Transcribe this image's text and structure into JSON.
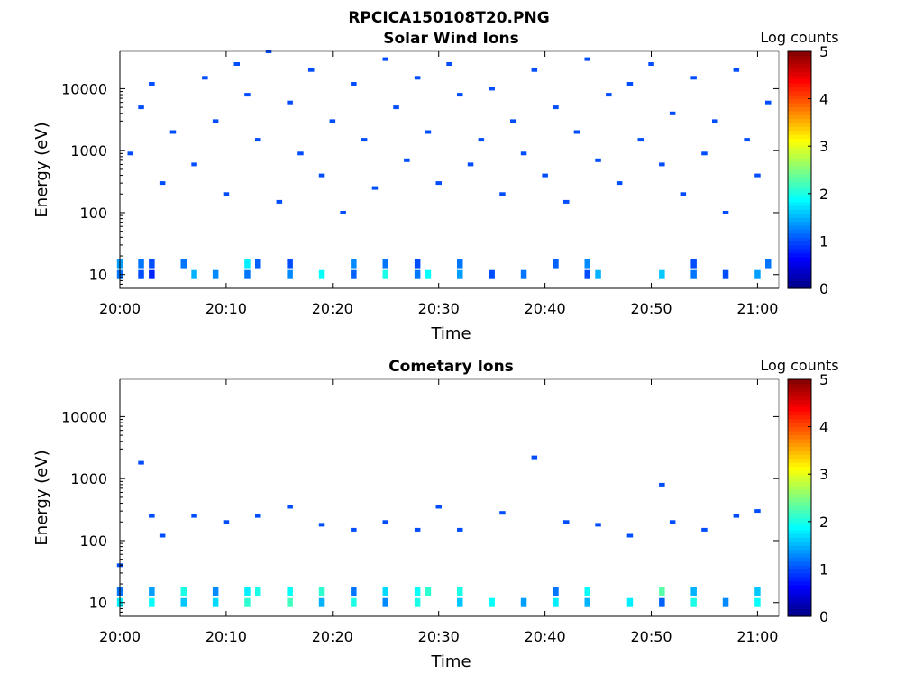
{
  "figure_title": "RPCICA150108T20.PNG",
  "colorbar": {
    "label": "Log counts",
    "min": 0,
    "max": 5,
    "ticks": [
      "0",
      "1",
      "2",
      "3",
      "4",
      "5"
    ],
    "colormap": "jet"
  },
  "chart_data": [
    {
      "type": "heatmap",
      "title": "Solar Wind Ions",
      "xlabel": "Time",
      "ylabel": "Energy (eV)",
      "xlim": [
        "20:00",
        "21:02"
      ],
      "ylim": [
        6,
        40000
      ],
      "yscale": "log",
      "xticks": [
        "20:00",
        "20:10",
        "20:20",
        "20:30",
        "20:40",
        "20:50",
        "21:00"
      ],
      "yticks": [
        "10",
        "100",
        "1000",
        "10000"
      ],
      "grid": false,
      "cells": [
        {
          "t": "20:00",
          "e": 10,
          "v": 1.2
        },
        {
          "t": "20:00",
          "e": 15,
          "v": 1.4
        },
        {
          "t": "20:02",
          "e": 10,
          "v": 1.0
        },
        {
          "t": "20:02",
          "e": 15,
          "v": 1.2
        },
        {
          "t": "20:03",
          "e": 10,
          "v": 0.8
        },
        {
          "t": "20:03",
          "e": 15,
          "v": 1.0
        },
        {
          "t": "20:06",
          "e": 15,
          "v": 1.2
        },
        {
          "t": "20:07",
          "e": 10,
          "v": 1.5
        },
        {
          "t": "20:09",
          "e": 10,
          "v": 1.3
        },
        {
          "t": "20:12",
          "e": 10,
          "v": 1.2
        },
        {
          "t": "20:12",
          "e": 15,
          "v": 1.8
        },
        {
          "t": "20:13",
          "e": 15,
          "v": 1.1
        },
        {
          "t": "20:16",
          "e": 10,
          "v": 1.3
        },
        {
          "t": "20:16",
          "e": 15,
          "v": 1.0
        },
        {
          "t": "20:19",
          "e": 10,
          "v": 1.9
        },
        {
          "t": "20:22",
          "e": 10,
          "v": 1.1
        },
        {
          "t": "20:22",
          "e": 15,
          "v": 1.3
        },
        {
          "t": "20:25",
          "e": 10,
          "v": 2.0
        },
        {
          "t": "20:25",
          "e": 15,
          "v": 1.2
        },
        {
          "t": "20:28",
          "e": 10,
          "v": 1.2
        },
        {
          "t": "20:28",
          "e": 15,
          "v": 1.0
        },
        {
          "t": "20:29",
          "e": 10,
          "v": 1.9
        },
        {
          "t": "20:32",
          "e": 10,
          "v": 1.4
        },
        {
          "t": "20:32",
          "e": 15,
          "v": 1.2
        },
        {
          "t": "20:35",
          "e": 10,
          "v": 1.0
        },
        {
          "t": "20:38",
          "e": 10,
          "v": 1.2
        },
        {
          "t": "20:41",
          "e": 15,
          "v": 1.1
        },
        {
          "t": "20:44",
          "e": 10,
          "v": 1.0
        },
        {
          "t": "20:44",
          "e": 15,
          "v": 1.3
        },
        {
          "t": "20:45",
          "e": 10,
          "v": 1.5
        },
        {
          "t": "20:51",
          "e": 10,
          "v": 1.6
        },
        {
          "t": "20:54",
          "e": 10,
          "v": 1.2
        },
        {
          "t": "20:54",
          "e": 15,
          "v": 1.0
        },
        {
          "t": "20:57",
          "e": 10,
          "v": 1.0
        },
        {
          "t": "21:00",
          "e": 10,
          "v": 1.4
        },
        {
          "t": "21:01",
          "e": 15,
          "v": 1.2
        },
        {
          "t": "20:01",
          "e": 900,
          "v": 1.0
        },
        {
          "t": "20:02",
          "e": 5000,
          "v": 1.0
        },
        {
          "t": "20:03",
          "e": 12000,
          "v": 1.0
        },
        {
          "t": "20:04",
          "e": 300,
          "v": 1.0
        },
        {
          "t": "20:05",
          "e": 2000,
          "v": 1.0
        },
        {
          "t": "20:07",
          "e": 600,
          "v": 1.0
        },
        {
          "t": "20:08",
          "e": 15000,
          "v": 1.0
        },
        {
          "t": "20:09",
          "e": 3000,
          "v": 1.0
        },
        {
          "t": "20:10",
          "e": 200,
          "v": 1.0
        },
        {
          "t": "20:11",
          "e": 25000,
          "v": 1.0
        },
        {
          "t": "20:12",
          "e": 8000,
          "v": 1.0
        },
        {
          "t": "20:13",
          "e": 1500,
          "v": 1.0
        },
        {
          "t": "20:14",
          "e": 40000,
          "v": 1.0
        },
        {
          "t": "20:15",
          "e": 150,
          "v": 1.0
        },
        {
          "t": "20:16",
          "e": 6000,
          "v": 1.0
        },
        {
          "t": "20:17",
          "e": 900,
          "v": 1.0
        },
        {
          "t": "20:18",
          "e": 20000,
          "v": 1.0
        },
        {
          "t": "20:19",
          "e": 400,
          "v": 1.0
        },
        {
          "t": "20:20",
          "e": 3000,
          "v": 1.0
        },
        {
          "t": "20:21",
          "e": 100,
          "v": 1.0
        },
        {
          "t": "20:22",
          "e": 12000,
          "v": 1.0
        },
        {
          "t": "20:23",
          "e": 1500,
          "v": 1.0
        },
        {
          "t": "20:24",
          "e": 250,
          "v": 1.0
        },
        {
          "t": "20:25",
          "e": 30000,
          "v": 1.0
        },
        {
          "t": "20:26",
          "e": 5000,
          "v": 1.0
        },
        {
          "t": "20:27",
          "e": 700,
          "v": 1.0
        },
        {
          "t": "20:28",
          "e": 15000,
          "v": 1.0
        },
        {
          "t": "20:29",
          "e": 2000,
          "v": 1.0
        },
        {
          "t": "20:30",
          "e": 300,
          "v": 1.0
        },
        {
          "t": "20:31",
          "e": 25000,
          "v": 1.0
        },
        {
          "t": "20:32",
          "e": 8000,
          "v": 1.0
        },
        {
          "t": "20:33",
          "e": 600,
          "v": 1.0
        },
        {
          "t": "20:34",
          "e": 1500,
          "v": 1.0
        },
        {
          "t": "20:35",
          "e": 10000,
          "v": 1.0
        },
        {
          "t": "20:36",
          "e": 200,
          "v": 1.0
        },
        {
          "t": "20:37",
          "e": 3000,
          "v": 1.0
        },
        {
          "t": "20:38",
          "e": 900,
          "v": 1.0
        },
        {
          "t": "20:39",
          "e": 20000,
          "v": 1.0
        },
        {
          "t": "20:40",
          "e": 400,
          "v": 1.0
        },
        {
          "t": "20:41",
          "e": 5000,
          "v": 1.0
        },
        {
          "t": "20:42",
          "e": 150,
          "v": 1.0
        },
        {
          "t": "20:43",
          "e": 2000,
          "v": 1.0
        },
        {
          "t": "20:44",
          "e": 30000,
          "v": 1.0
        },
        {
          "t": "20:45",
          "e": 700,
          "v": 1.0
        },
        {
          "t": "20:46",
          "e": 8000,
          "v": 1.0
        },
        {
          "t": "20:47",
          "e": 300,
          "v": 1.0
        },
        {
          "t": "20:48",
          "e": 12000,
          "v": 1.0
        },
        {
          "t": "20:49",
          "e": 1500,
          "v": 1.0
        },
        {
          "t": "20:50",
          "e": 25000,
          "v": 1.0
        },
        {
          "t": "20:51",
          "e": 600,
          "v": 1.0
        },
        {
          "t": "20:52",
          "e": 4000,
          "v": 1.0
        },
        {
          "t": "20:53",
          "e": 200,
          "v": 1.0
        },
        {
          "t": "20:54",
          "e": 15000,
          "v": 1.0
        },
        {
          "t": "20:55",
          "e": 900,
          "v": 1.0
        },
        {
          "t": "20:56",
          "e": 3000,
          "v": 1.0
        },
        {
          "t": "20:57",
          "e": 100,
          "v": 1.0
        },
        {
          "t": "20:58",
          "e": 20000,
          "v": 1.0
        },
        {
          "t": "20:59",
          "e": 1500,
          "v": 1.0
        },
        {
          "t": "21:00",
          "e": 400,
          "v": 1.0
        },
        {
          "t": "21:01",
          "e": 6000,
          "v": 1.0
        }
      ]
    },
    {
      "type": "heatmap",
      "title": "Cometary Ions",
      "xlabel": "Time",
      "ylabel": "Energy (eV)",
      "xlim": [
        "20:00",
        "21:02"
      ],
      "ylim": [
        6,
        40000
      ],
      "yscale": "log",
      "xticks": [
        "20:00",
        "20:10",
        "20:20",
        "20:30",
        "20:40",
        "20:50",
        "21:00"
      ],
      "yticks": [
        "10",
        "100",
        "1000",
        "10000"
      ],
      "grid": false,
      "cells": [
        {
          "t": "20:00",
          "e": 10,
          "v": 1.8
        },
        {
          "t": "20:00",
          "e": 15,
          "v": 1.2
        },
        {
          "t": "20:03",
          "e": 10,
          "v": 1.9
        },
        {
          "t": "20:03",
          "e": 15,
          "v": 1.4
        },
        {
          "t": "20:06",
          "e": 10,
          "v": 1.6
        },
        {
          "t": "20:06",
          "e": 15,
          "v": 2.0
        },
        {
          "t": "20:09",
          "e": 10,
          "v": 1.7
        },
        {
          "t": "20:09",
          "e": 15,
          "v": 1.3
        },
        {
          "t": "20:12",
          "e": 10,
          "v": 2.1
        },
        {
          "t": "20:12",
          "e": 15,
          "v": 1.8
        },
        {
          "t": "20:13",
          "e": 15,
          "v": 2.0
        },
        {
          "t": "20:16",
          "e": 10,
          "v": 2.2
        },
        {
          "t": "20:16",
          "e": 15,
          "v": 1.9
        },
        {
          "t": "20:19",
          "e": 10,
          "v": 1.5
        },
        {
          "t": "20:19",
          "e": 15,
          "v": 2.1
        },
        {
          "t": "20:22",
          "e": 10,
          "v": 2.0
        },
        {
          "t": "20:22",
          "e": 15,
          "v": 1.2
        },
        {
          "t": "20:25",
          "e": 10,
          "v": 1.3
        },
        {
          "t": "20:25",
          "e": 15,
          "v": 1.7
        },
        {
          "t": "20:28",
          "e": 10,
          "v": 2.0
        },
        {
          "t": "20:28",
          "e": 15,
          "v": 1.9
        },
        {
          "t": "20:29",
          "e": 15,
          "v": 2.1
        },
        {
          "t": "20:32",
          "e": 10,
          "v": 1.6
        },
        {
          "t": "20:32",
          "e": 15,
          "v": 2.0
        },
        {
          "t": "20:35",
          "e": 10,
          "v": 1.9
        },
        {
          "t": "20:38",
          "e": 10,
          "v": 1.4
        },
        {
          "t": "20:41",
          "e": 10,
          "v": 1.8
        },
        {
          "t": "20:41",
          "e": 15,
          "v": 1.2
        },
        {
          "t": "20:44",
          "e": 10,
          "v": 1.5
        },
        {
          "t": "20:44",
          "e": 15,
          "v": 1.9
        },
        {
          "t": "20:48",
          "e": 10,
          "v": 1.8
        },
        {
          "t": "20:51",
          "e": 10,
          "v": 1.1
        },
        {
          "t": "20:51",
          "e": 15,
          "v": 2.3
        },
        {
          "t": "20:54",
          "e": 10,
          "v": 2.0
        },
        {
          "t": "20:54",
          "e": 15,
          "v": 1.5
        },
        {
          "t": "20:57",
          "e": 10,
          "v": 1.3
        },
        {
          "t": "21:00",
          "e": 10,
          "v": 1.9
        },
        {
          "t": "21:00",
          "e": 15,
          "v": 1.6
        },
        {
          "t": "20:00",
          "e": 40,
          "v": 1.0
        },
        {
          "t": "20:02",
          "e": 1800,
          "v": 1.0
        },
        {
          "t": "20:03",
          "e": 250,
          "v": 1.0
        },
        {
          "t": "20:04",
          "e": 120,
          "v": 1.0
        },
        {
          "t": "20:07",
          "e": 250,
          "v": 1.0
        },
        {
          "t": "20:10",
          "e": 200,
          "v": 1.0
        },
        {
          "t": "20:13",
          "e": 250,
          "v": 1.0
        },
        {
          "t": "20:16",
          "e": 350,
          "v": 1.0
        },
        {
          "t": "20:19",
          "e": 180,
          "v": 1.0
        },
        {
          "t": "20:22",
          "e": 150,
          "v": 1.0
        },
        {
          "t": "20:25",
          "e": 200,
          "v": 1.0
        },
        {
          "t": "20:28",
          "e": 150,
          "v": 1.0
        },
        {
          "t": "20:30",
          "e": 350,
          "v": 1.0
        },
        {
          "t": "20:32",
          "e": 150,
          "v": 1.0
        },
        {
          "t": "20:36",
          "e": 280,
          "v": 1.0
        },
        {
          "t": "20:39",
          "e": 2200,
          "v": 1.0
        },
        {
          "t": "20:42",
          "e": 200,
          "v": 1.0
        },
        {
          "t": "20:45",
          "e": 180,
          "v": 1.0
        },
        {
          "t": "20:48",
          "e": 120,
          "v": 1.0
        },
        {
          "t": "20:51",
          "e": 800,
          "v": 1.0
        },
        {
          "t": "20:52",
          "e": 200,
          "v": 1.0
        },
        {
          "t": "20:55",
          "e": 150,
          "v": 1.0
        },
        {
          "t": "20:58",
          "e": 250,
          "v": 1.0
        },
        {
          "t": "21:00",
          "e": 300,
          "v": 1.0
        }
      ]
    }
  ]
}
